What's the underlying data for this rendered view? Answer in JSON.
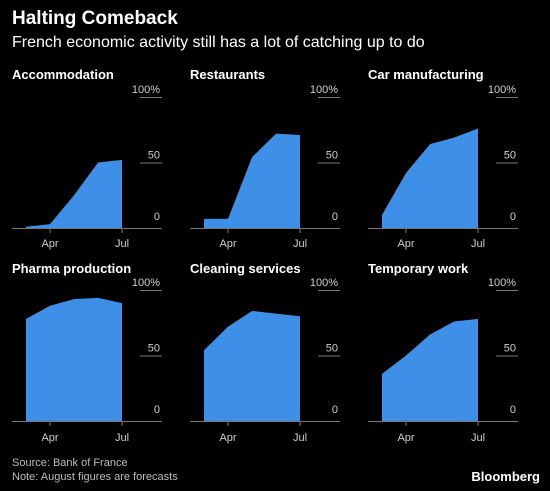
{
  "title": "Halting Comeback",
  "subtitle": "French economic activity still has a lot of catching up to do",
  "source": "Source: Bank of France",
  "note": "Note: August figures are forecasts",
  "logo": "Bloomberg",
  "colors": {
    "background": "#000000",
    "area": "#3d8fe8",
    "axis": "#777777",
    "text": "#ffffff",
    "muted": "#cfcfcf"
  },
  "chart_data": [
    {
      "type": "area",
      "title": "Accommodation",
      "x": [
        "Mar",
        "Apr",
        "May",
        "Jun",
        "Jul",
        "Aug"
      ],
      "values": [
        1,
        3,
        25,
        50,
        52,
        null
      ],
      "x_tick_labels": [
        "Apr",
        "Jul"
      ],
      "y_tick_labels": [
        "0",
        "50",
        "100%"
      ],
      "ylim": [
        0,
        100
      ]
    },
    {
      "type": "area",
      "title": "Restaurants",
      "x": [
        "Mar",
        "Apr",
        "May",
        "Jun",
        "Jul",
        "Aug"
      ],
      "values": [
        7,
        7,
        54,
        72,
        71,
        null
      ],
      "x_tick_labels": [
        "Apr",
        "Jul"
      ],
      "y_tick_labels": [
        "0",
        "50",
        "100%"
      ],
      "ylim": [
        0,
        100
      ]
    },
    {
      "type": "area",
      "title": "Car manufacturing",
      "x": [
        "Mar",
        "Apr",
        "May",
        "Jun",
        "Jul",
        "Aug"
      ],
      "values": [
        10,
        42,
        64,
        69,
        76,
        null
      ],
      "x_tick_labels": [
        "Apr",
        "Jul"
      ],
      "y_tick_labels": [
        "0",
        "50",
        "100%"
      ],
      "ylim": [
        0,
        100
      ]
    },
    {
      "type": "area",
      "title": "Pharma production",
      "x": [
        "Mar",
        "Apr",
        "May",
        "Jun",
        "Jul",
        "Aug"
      ],
      "values": [
        78,
        88,
        93,
        94,
        90,
        null
      ],
      "x_tick_labels": [
        "Apr",
        "Jul"
      ],
      "y_tick_labels": [
        "0",
        "50",
        "100%"
      ],
      "ylim": [
        0,
        100
      ]
    },
    {
      "type": "area",
      "title": "Cleaning services",
      "x": [
        "Mar",
        "Apr",
        "May",
        "Jun",
        "Jul",
        "Aug"
      ],
      "values": [
        54,
        72,
        84,
        82,
        80,
        null
      ],
      "x_tick_labels": [
        "Apr",
        "Jul"
      ],
      "y_tick_labels": [
        "0",
        "50",
        "100%"
      ],
      "ylim": [
        0,
        100
      ]
    },
    {
      "type": "area",
      "title": "Temporary work",
      "x": [
        "Mar",
        "Apr",
        "May",
        "Jun",
        "Jul",
        "Aug"
      ],
      "values": [
        36,
        50,
        66,
        76,
        78,
        null
      ],
      "x_tick_labels": [
        "Apr",
        "Jul"
      ],
      "y_tick_labels": [
        "0",
        "50",
        "100%"
      ],
      "ylim": [
        0,
        100
      ]
    }
  ]
}
